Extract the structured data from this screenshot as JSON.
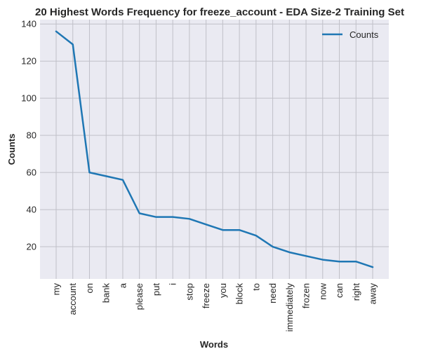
{
  "colors": {
    "plot_background": "#eaeaf2",
    "grid": "#c0c0c8",
    "line": "#1f77b4",
    "text": "#262626"
  },
  "chart_data": {
    "type": "line",
    "title": "20 Highest Words Frequency for freeze_account - EDA Size-2 Training Set",
    "xlabel": "Words",
    "ylabel": "Counts",
    "categories": [
      "my",
      "account",
      "on",
      "bank",
      "a",
      "please",
      "put",
      "i",
      "stop",
      "freeze",
      "you",
      "block",
      "to",
      "need",
      "immediately",
      "frozen",
      "now",
      "can",
      "right",
      "away"
    ],
    "series": [
      {
        "name": "Counts",
        "values": [
          136,
          129,
          60,
          58,
          56,
          38,
          36,
          36,
          35,
          32,
          29,
          29,
          26,
          20,
          17,
          15,
          13,
          12,
          12,
          9
        ]
      }
    ],
    "ylim": [
      2.65,
      142.35
    ],
    "yticks": [
      20,
      40,
      60,
      80,
      100,
      120,
      140
    ],
    "grid": true,
    "legend_position": "top-right"
  }
}
